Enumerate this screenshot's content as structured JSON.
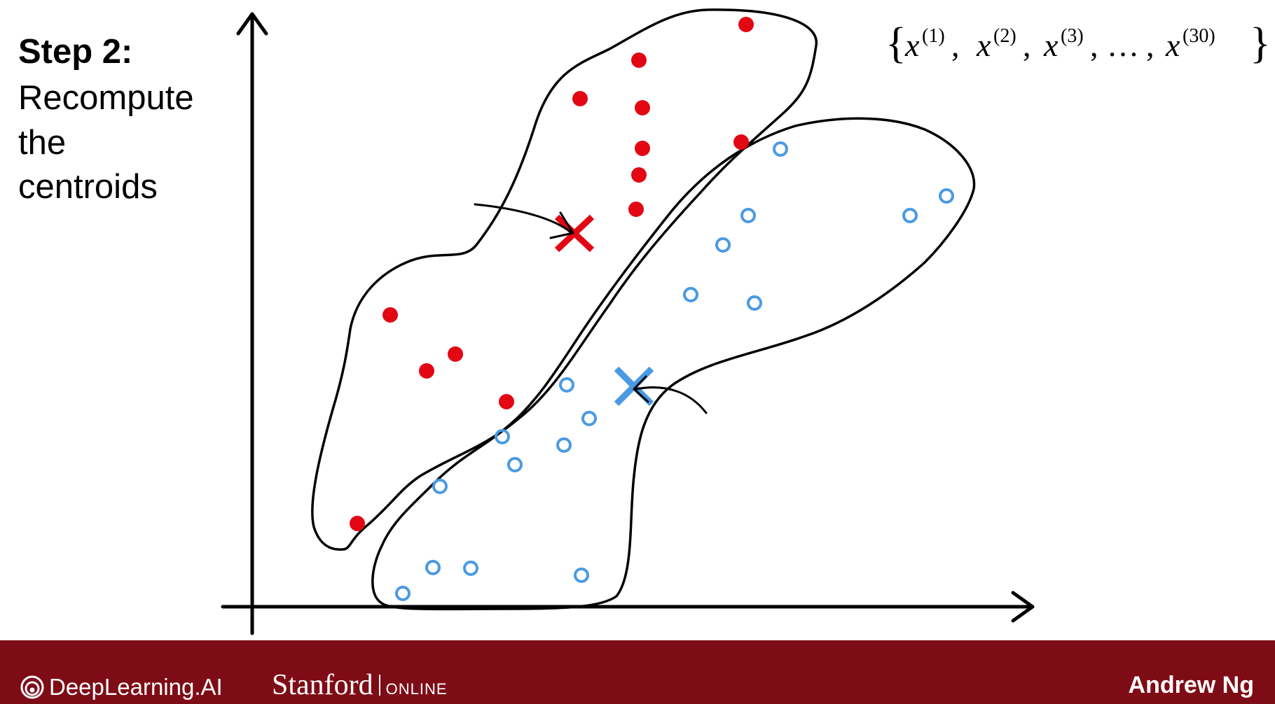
{
  "slide": {
    "title": "Step 2:",
    "description_lines": [
      "Recompute",
      "the",
      "centroids"
    ]
  },
  "formula": {
    "open": "{",
    "var": "x",
    "superscripts": [
      "(1)",
      "(2)",
      "(3)",
      "(30)"
    ],
    "ellipsis": "…",
    "close": "}"
  },
  "colors": {
    "cluster_red": "#e30613",
    "cluster_blue": "#4a9ae3",
    "footer": "#7e0c16"
  },
  "footer": {
    "deeplearning": "DeepLearning.AI",
    "stanford": "Stanford",
    "online": "ONLINE",
    "author": "Andrew Ng"
  }
}
